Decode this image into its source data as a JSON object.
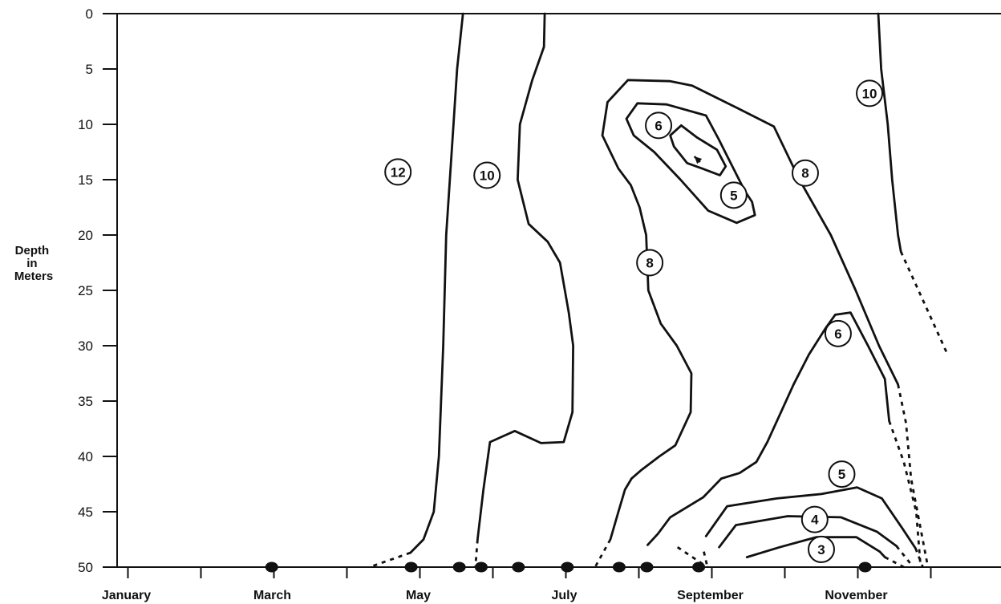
{
  "chart_data": {
    "type": "contour",
    "title": "",
    "xlabel": "",
    "ylabel": "Depth in Meters",
    "ylabel_lines": [
      "Depth",
      "in",
      "Meters"
    ],
    "y_axis": {
      "inverted": true,
      "ylim": [
        0,
        50
      ],
      "ticks": [
        0,
        5,
        10,
        15,
        20,
        25,
        30,
        35,
        40,
        45,
        50
      ]
    },
    "x_axis": {
      "unit": "month",
      "xlim": [
        0,
        12
      ],
      "month_labels": [
        "January",
        "March",
        "May",
        "July",
        "September",
        "November"
      ],
      "month_label_positions": [
        0.5,
        2.5,
        4.5,
        6.5,
        8.5,
        10.5
      ],
      "major_ticks": [
        0.5,
        1.5,
        2.5,
        3.5,
        4.5,
        5.5,
        6.5,
        7.5,
        8.5,
        9.5,
        10.5,
        11.5
      ]
    },
    "sample_dates": [
      2.47,
      4.38,
      5.04,
      5.34,
      5.85,
      6.52,
      7.23,
      7.61,
      8.32,
      10.6
    ],
    "contour_labels": [
      {
        "text": "12",
        "x": 4.2,
        "y": 14.3
      },
      {
        "text": "10",
        "x": 5.42,
        "y": 14.6
      },
      {
        "text": "10",
        "x": 10.66,
        "y": 7.2
      },
      {
        "text": "8",
        "x": 7.65,
        "y": 22.5
      },
      {
        "text": "8",
        "x": 9.78,
        "y": 14.4
      },
      {
        "text": "6",
        "x": 7.77,
        "y": 10.1
      },
      {
        "text": "6",
        "x": 10.23,
        "y": 28.9
      },
      {
        "text": "5",
        "x": 8.8,
        "y": 16.4
      },
      {
        "text": "5",
        "x": 10.28,
        "y": 41.6
      },
      {
        "text": "4",
        "x": 9.91,
        "y": 45.7
      },
      {
        "text": "3",
        "x": 10.0,
        "y": 48.4
      }
    ],
    "isolines": [
      {
        "value": 12,
        "solid": [
          [
            5.09,
            0
          ],
          [
            5.01,
            5
          ],
          [
            4.96,
            10
          ],
          [
            4.86,
            20
          ],
          [
            4.82,
            30
          ],
          [
            4.76,
            40
          ],
          [
            4.69,
            45
          ],
          [
            4.55,
            47.5
          ],
          [
            4.37,
            48.7
          ]
        ],
        "dashed": [
          [
            4.37,
            48.7
          ],
          [
            3.81,
            50
          ]
        ]
      },
      {
        "value": 10,
        "solid": [
          [
            6.21,
            0
          ],
          [
            6.2,
            3
          ],
          [
            6.04,
            6
          ],
          [
            5.87,
            10
          ],
          [
            5.84,
            15
          ],
          [
            5.99,
            19
          ],
          [
            6.25,
            20.6
          ],
          [
            6.42,
            22.5
          ],
          [
            6.54,
            27
          ],
          [
            6.6,
            30
          ],
          [
            6.59,
            36
          ],
          [
            6.47,
            38.7
          ],
          [
            6.16,
            38.8
          ],
          [
            5.8,
            37.7
          ],
          [
            5.46,
            38.7
          ],
          [
            5.37,
            43
          ],
          [
            5.29,
            47.5
          ]
        ],
        "dashed": [
          [
            5.29,
            47.5
          ],
          [
            5.26,
            50
          ]
        ]
      },
      {
        "value": 10,
        "solid": [
          [
            10.78,
            0
          ],
          [
            10.82,
            5
          ],
          [
            10.91,
            10
          ],
          [
            10.97,
            15
          ],
          [
            11.05,
            20
          ],
          [
            11.09,
            21.5
          ]
        ],
        "dashed": [
          [
            11.09,
            21.5
          ],
          [
            11.4,
            26
          ],
          [
            11.73,
            30.8
          ]
        ]
      },
      {
        "value": 8,
        "solid": [
          [
            7.07,
            8
          ],
          [
            7.35,
            6
          ],
          [
            7.93,
            6.1
          ],
          [
            8.23,
            6.5
          ],
          [
            8.84,
            8.5
          ],
          [
            9.35,
            10.2
          ],
          [
            9.7,
            15
          ],
          [
            10.13,
            20
          ],
          [
            10.47,
            25
          ],
          [
            10.79,
            30
          ],
          [
            11.05,
            33.5
          ]
        ],
        "dashed": [
          [
            11.05,
            33.5
          ],
          [
            11.16,
            37
          ],
          [
            11.23,
            42
          ],
          [
            11.46,
            50
          ]
        ]
      },
      {
        "value": 8,
        "solid": [
          [
            7.07,
            8
          ],
          [
            7.0,
            11
          ],
          [
            7.22,
            14
          ],
          [
            7.39,
            15.5
          ],
          [
            7.51,
            17.5
          ],
          [
            7.6,
            20
          ],
          [
            7.63,
            25
          ],
          [
            7.8,
            28
          ],
          [
            8.02,
            30
          ],
          [
            8.22,
            32.5
          ],
          [
            8.21,
            36
          ],
          [
            8.0,
            39
          ],
          [
            7.78,
            40
          ],
          [
            7.54,
            41.2
          ],
          [
            7.4,
            42
          ],
          [
            7.31,
            43
          ],
          [
            7.22,
            45
          ],
          [
            7.11,
            47.5
          ]
        ],
        "dashed": [
          [
            7.11,
            47.5
          ],
          [
            6.9,
            50
          ]
        ]
      },
      {
        "value": 6,
        "solid": [
          [
            7.48,
            8.1
          ],
          [
            7.88,
            8.2
          ],
          [
            8.42,
            9.2
          ],
          [
            8.59,
            11.3
          ],
          [
            8.72,
            13
          ],
          [
            8.95,
            16
          ],
          [
            9.05,
            17
          ],
          [
            9.09,
            18.2
          ],
          [
            8.84,
            18.9
          ],
          [
            8.45,
            17.8
          ],
          [
            8.07,
            15
          ],
          [
            7.71,
            12.5
          ],
          [
            7.43,
            11
          ],
          [
            7.33,
            9.5
          ],
          [
            7.48,
            8.1
          ]
        ]
      },
      {
        "value": 5,
        "solid": [
          [
            8.08,
            10.1
          ],
          [
            8.3,
            11.2
          ],
          [
            8.57,
            12.3
          ],
          [
            8.69,
            13.8
          ],
          [
            8.61,
            14.6
          ],
          [
            8.37,
            14
          ],
          [
            8.16,
            13.5
          ],
          [
            7.98,
            12
          ],
          [
            7.93,
            11
          ],
          [
            8.08,
            10.1
          ]
        ],
        "arrow": [
          [
            8.34,
            13.4
          ],
          [
            8.26,
            12.9
          ]
        ]
      },
      {
        "value": 6,
        "solid": [
          [
            10.93,
            36.8
          ],
          [
            10.87,
            33
          ],
          [
            10.64,
            30
          ],
          [
            10.4,
            27
          ],
          [
            10.19,
            27.2
          ],
          [
            10.06,
            28.4
          ],
          [
            9.83,
            30.8
          ],
          [
            9.62,
            33.5
          ],
          [
            9.26,
            38.7
          ],
          [
            9.11,
            40.5
          ],
          [
            8.88,
            41.5
          ],
          [
            8.63,
            42
          ],
          [
            8.38,
            43.7
          ],
          [
            7.93,
            45.5
          ],
          [
            7.76,
            47
          ],
          [
            7.62,
            48
          ]
        ],
        "dashed": [
          [
            10.93,
            36.8
          ],
          [
            11.13,
            40.5
          ],
          [
            11.3,
            45
          ],
          [
            11.36,
            50
          ]
        ]
      },
      {
        "value": 5,
        "solid": [
          [
            8.42,
            47.2
          ],
          [
            8.71,
            44.5
          ],
          [
            9.39,
            43.8
          ],
          [
            10.0,
            43.4
          ],
          [
            10.49,
            42.8
          ],
          [
            10.83,
            43.8
          ],
          [
            11.11,
            46.5
          ],
          [
            11.29,
            48.3
          ]
        ],
        "dashed": [
          [
            11.29,
            48.3
          ],
          [
            11.39,
            50
          ]
        ]
      },
      {
        "value": 4,
        "solid": [
          [
            8.6,
            48.2
          ],
          [
            8.83,
            46.2
          ],
          [
            9.54,
            45.4
          ],
          [
            10.27,
            45.5
          ],
          [
            10.76,
            46.8
          ],
          [
            11.03,
            48.1
          ]
        ],
        "dashed": [
          [
            11.03,
            48.1
          ],
          [
            11.26,
            50
          ]
        ]
      },
      {
        "value": 3,
        "solid": [
          [
            8.98,
            49.1
          ],
          [
            9.43,
            48.2
          ],
          [
            9.93,
            47.3
          ],
          [
            10.48,
            47.3
          ],
          [
            10.8,
            48.6
          ],
          [
            10.87,
            49.1
          ]
        ],
        "dashed": [
          [
            10.87,
            49.1
          ],
          [
            11.13,
            50
          ]
        ]
      },
      {
        "value": 0,
        "dashed": [
          [
            8.03,
            48.2
          ],
          [
            8.44,
            50
          ]
        ]
      },
      {
        "value": 0,
        "dashed": [
          [
            8.39,
            48.6
          ],
          [
            8.44,
            50
          ]
        ]
      }
    ]
  }
}
